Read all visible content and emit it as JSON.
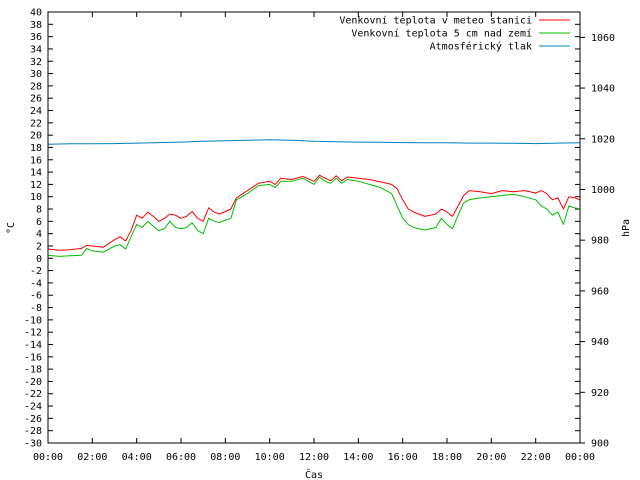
{
  "chart_data": {
    "type": "line",
    "xlabel": "Čas",
    "ylabel": "°C",
    "y2label": "hPa",
    "x_unit": "hours",
    "xlim": [
      0,
      24
    ],
    "ylim": [
      -30,
      40
    ],
    "y2lim": [
      900,
      1070
    ],
    "x_ticks": [
      "00:00",
      "02:00",
      "04:00",
      "06:00",
      "08:00",
      "10:00",
      "12:00",
      "14:00",
      "16:00",
      "18:00",
      "20:00",
      "22:00",
      "00:00"
    ],
    "y_ticks": [
      -30,
      -28,
      -26,
      -24,
      -22,
      -20,
      -18,
      -16,
      -14,
      -12,
      -10,
      -8,
      -6,
      -4,
      -2,
      0,
      2,
      4,
      6,
      8,
      10,
      12,
      14,
      16,
      18,
      20,
      22,
      24,
      26,
      28,
      30,
      32,
      34,
      36,
      38,
      40
    ],
    "y2_ticks": [
      900,
      920,
      940,
      960,
      980,
      1000,
      1020,
      1040,
      1060
    ],
    "grid": false,
    "legend_position": "top-right",
    "colors": {
      "frame": "#000000",
      "series1": "#ff0000",
      "series2": "#00c000",
      "series3": "#0080c0"
    },
    "series": [
      {
        "name": "Venkovní teplota v meteo stanici",
        "color": "#ff0000",
        "axis": "left",
        "x": [
          0,
          0.5,
          1,
          1.5,
          1.75,
          2,
          2.5,
          3,
          3.25,
          3.5,
          3.75,
          4,
          4.25,
          4.5,
          4.75,
          5,
          5.25,
          5.5,
          5.75,
          6,
          6.25,
          6.5,
          6.75,
          7,
          7.25,
          7.5,
          7.75,
          8,
          8.25,
          8.5,
          9,
          9.5,
          10,
          10.25,
          10.5,
          11,
          11.5,
          12,
          12.25,
          12.5,
          12.75,
          13,
          13.25,
          13.5,
          14,
          14.5,
          15,
          15.5,
          15.75,
          16,
          16.25,
          16.5,
          17,
          17.5,
          17.75,
          18,
          18.25,
          18.5,
          18.75,
          19,
          19.5,
          20,
          20.5,
          21,
          21.5,
          22,
          22.25,
          22.5,
          22.75,
          23,
          23.25,
          23.5,
          23.75,
          24
        ],
        "values": [
          1.5,
          1.3,
          1.4,
          1.6,
          2.1,
          2.0,
          1.8,
          3.0,
          3.5,
          2.8,
          4.5,
          7.0,
          6.5,
          7.5,
          6.8,
          6.0,
          6.5,
          7.2,
          7.0,
          6.5,
          6.8,
          7.6,
          6.5,
          6.0,
          8.2,
          7.5,
          7.2,
          7.6,
          8.0,
          9.8,
          11.0,
          12.2,
          12.5,
          12.0,
          13.0,
          12.8,
          13.3,
          12.5,
          13.5,
          13.0,
          12.6,
          13.4,
          12.6,
          13.2,
          13.0,
          12.8,
          12.4,
          12.0,
          11.3,
          9.5,
          8.0,
          7.5,
          6.8,
          7.2,
          8.0,
          7.5,
          6.8,
          8.5,
          10.2,
          11.0,
          10.8,
          10.5,
          11.0,
          10.8,
          11.0,
          10.6,
          11.0,
          10.5,
          9.5,
          9.8,
          8.0,
          10.0,
          9.8,
          9.5
        ]
      },
      {
        "name": "Venkovní teplota 5 cm nad zemí",
        "color": "#00c000",
        "axis": "left",
        "x": [
          0,
          0.5,
          1,
          1.5,
          1.75,
          2,
          2.5,
          3,
          3.25,
          3.5,
          3.75,
          4,
          4.25,
          4.5,
          4.75,
          5,
          5.25,
          5.5,
          5.75,
          6,
          6.25,
          6.5,
          6.75,
          7,
          7.25,
          7.5,
          7.75,
          8,
          8.25,
          8.5,
          9,
          9.5,
          10,
          10.25,
          10.5,
          11,
          11.5,
          12,
          12.25,
          12.5,
          12.75,
          13,
          13.25,
          13.5,
          14,
          14.5,
          15,
          15.5,
          15.75,
          16,
          16.25,
          16.5,
          17,
          17.5,
          17.75,
          18,
          18.25,
          18.5,
          18.75,
          19,
          19.5,
          20,
          20.5,
          21,
          21.5,
          22,
          22.25,
          22.5,
          22.75,
          23,
          23.25,
          23.5,
          23.75,
          24
        ],
        "values": [
          0.5,
          0.3,
          0.4,
          0.5,
          1.6,
          1.2,
          1.0,
          2.0,
          2.2,
          1.5,
          3.5,
          5.5,
          5.0,
          6.0,
          5.2,
          4.5,
          4.8,
          6.0,
          5.0,
          4.8,
          5.0,
          5.8,
          4.5,
          4.0,
          6.5,
          6.0,
          5.8,
          6.2,
          6.5,
          9.5,
          10.5,
          11.8,
          12.0,
          11.5,
          12.5,
          12.5,
          13.0,
          12.0,
          13.2,
          12.5,
          12.2,
          13.0,
          12.2,
          12.8,
          12.5,
          12.0,
          11.5,
          10.5,
          8.5,
          6.5,
          5.5,
          5.0,
          4.6,
          5.0,
          6.5,
          5.5,
          4.8,
          7.0,
          9.0,
          9.5,
          9.8,
          10.0,
          10.2,
          10.4,
          10.0,
          9.5,
          8.5,
          8.0,
          7.0,
          7.5,
          5.5,
          8.5,
          8.2,
          8.0
        ]
      },
      {
        "name": "Atmosférický tlak",
        "color": "#0080c0",
        "axis": "right",
        "x": [
          0,
          1,
          2,
          3,
          4,
          5,
          6,
          7,
          8,
          9,
          10,
          11,
          12,
          13,
          14,
          15,
          16,
          17,
          18,
          19,
          20,
          21,
          22,
          23,
          24
        ],
        "values": [
          1017.8,
          1018.0,
          1018.0,
          1018.1,
          1018.3,
          1018.5,
          1018.7,
          1019.0,
          1019.2,
          1019.4,
          1019.6,
          1019.4,
          1019.0,
          1018.8,
          1018.7,
          1018.6,
          1018.5,
          1018.4,
          1018.4,
          1018.3,
          1018.3,
          1018.2,
          1018.1,
          1018.3,
          1018.4
        ]
      }
    ]
  }
}
